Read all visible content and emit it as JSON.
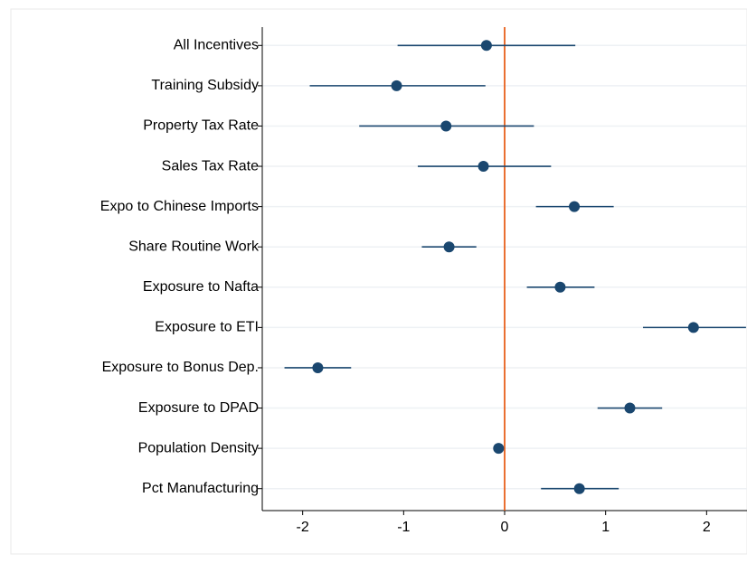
{
  "chart_data": {
    "type": "coefplot",
    "categories": [
      "All Incentives",
      "Training Subsidy",
      "Property Tax Rate",
      "Sales Tax Rate",
      "Expo to Chinese Imports",
      "Share Routine Work",
      "Exposure to Nafta",
      "Exposure to ETI",
      "Exposure to Bonus Dep.",
      "Exposure to DPAD",
      "Population Density",
      "Pct Manufacturing"
    ],
    "values": [
      -0.18,
      -1.07,
      -0.58,
      -0.21,
      0.69,
      -0.55,
      0.55,
      1.87,
      -1.85,
      1.24,
      -0.06,
      0.74
    ],
    "lower": [
      -1.06,
      -1.93,
      -1.44,
      -0.86,
      0.31,
      -0.82,
      0.22,
      1.37,
      -2.18,
      0.92,
      -0.09,
      0.36
    ],
    "upper": [
      0.7,
      -0.19,
      0.29,
      0.46,
      1.08,
      -0.28,
      0.89,
      2.39,
      -1.52,
      1.56,
      -0.03,
      1.13
    ],
    "color": "#1a476f",
    "refline": 0,
    "refline_color": "#e8601c",
    "xlim": [
      -2.4,
      2.4
    ],
    "xticks": [
      -2,
      -1,
      0,
      1,
      2
    ],
    "grid": true
  }
}
